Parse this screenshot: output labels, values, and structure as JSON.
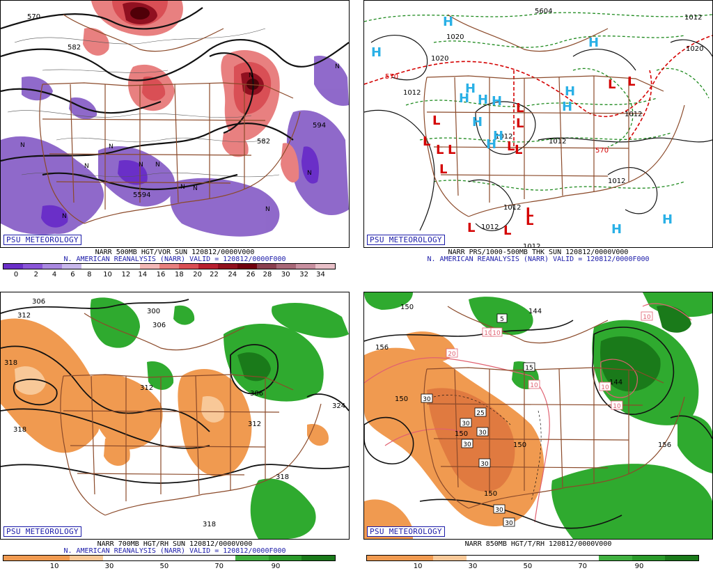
{
  "brand": "PSU METEOROLOGY",
  "colors": {
    "vor_low": "#8a62c8",
    "vor_high": "#d9505a",
    "rh_dry": "#f09a50",
    "rh_wet": "#2faa2f",
    "border": "#8b4a2a",
    "low_mark": "#d40000",
    "high_mark": "#2ab0e6"
  },
  "panels": [
    {
      "caption1": "NARR 500MB HGT/VOR SUN 120812/0000V000",
      "caption2": "N. AMERICAN REANALYSIS (NARR) VALID = 120812/0000F000",
      "colorbar_colors": [
        "#6a2fc8",
        "#8a55d8",
        "#a988e0",
        "#c8b8ec",
        "#ffffff",
        "#ffffff",
        "#ffffff",
        "#f2b8b8",
        "#e88080",
        "#d94f55",
        "#b82030",
        "#901020",
        "#700010",
        "#8a4050",
        "#a86878",
        "#c890a0",
        "#e8c0c8"
      ],
      "ticks": [
        {
          "label": "0",
          "pos": 0.04
        },
        {
          "label": "2",
          "pos": 0.1
        },
        {
          "label": "4",
          "pos": 0.155
        },
        {
          "label": "6",
          "pos": 0.21
        },
        {
          "label": "8",
          "pos": 0.26
        },
        {
          "label": "10",
          "pos": 0.315
        },
        {
          "label": "12",
          "pos": 0.37
        },
        {
          "label": "14",
          "pos": 0.42
        },
        {
          "label": "16",
          "pos": 0.475
        },
        {
          "label": "18",
          "pos": 0.53
        },
        {
          "label": "20",
          "pos": 0.585
        },
        {
          "label": "22",
          "pos": 0.635
        },
        {
          "label": "24",
          "pos": 0.69
        },
        {
          "label": "26",
          "pos": 0.745
        },
        {
          "label": "28",
          "pos": 0.795
        },
        {
          "label": "30",
          "pos": 0.85
        },
        {
          "label": "32",
          "pos": 0.905
        },
        {
          "label": "34",
          "pos": 0.955
        }
      ],
      "contour_labels": [
        "570",
        "582",
        "594",
        "5594",
        "582"
      ],
      "vort_marks": [
        "N",
        "N",
        "N",
        "N",
        "N",
        "N",
        "N",
        "N",
        "N",
        "N",
        "N",
        "N"
      ]
    },
    {
      "caption1": "NARR PRS/1000-500MB THK SUN 120812/0000V000",
      "caption2": "N. AMERICAN REANALYSIS (NARR) VALID = 120812/0000F000",
      "contour_labels": [
        "1020",
        "1012",
        "1012",
        "1012",
        "1012",
        "1012",
        "1012",
        "1020",
        "1012",
        "5604",
        "570",
        "570",
        "1020",
        "1012",
        "1012"
      ],
      "high_marks": [
        "H",
        "H",
        "H",
        "H",
        "H",
        "H",
        "H",
        "H",
        "H",
        "H",
        "H",
        "H",
        "H",
        "H"
      ],
      "low_marks": [
        "L",
        "L",
        "L",
        "L",
        "L",
        "L",
        "L",
        "L",
        "L",
        "L",
        "L",
        "L",
        "L",
        "L",
        "L"
      ]
    },
    {
      "caption1": "NARR 700MB HGT/RH SUN 120812/0000V000",
      "caption2": "N. AMERICAN REANALYSIS (NARR) VALID = 120812/0000F000",
      "colorbar_colors": [
        "#f09a50",
        "#f09a50",
        "#f8c898",
        "#ffffff",
        "#ffffff",
        "#ffffff",
        "#ffffff",
        "#40b040",
        "#2a9a2a",
        "#1a7a1a"
      ],
      "ticks": [
        {
          "label": "10",
          "pos": 0.155
        },
        {
          "label": "30",
          "pos": 0.32
        },
        {
          "label": "50",
          "pos": 0.485
        },
        {
          "label": "70",
          "pos": 0.65
        },
        {
          "label": "90",
          "pos": 0.82
        }
      ],
      "contour_labels": [
        "306",
        "312",
        "300",
        "306",
        "318",
        "312",
        "306",
        "312",
        "324",
        "318",
        "318",
        "318"
      ]
    },
    {
      "caption1": "NARR 850MB HGT/T/RH 120812/0000V000",
      "caption2": "",
      "colorbar_colors": [
        "#f09a50",
        "#f09a50",
        "#f8c898",
        "#ffffff",
        "#ffffff",
        "#ffffff",
        "#ffffff",
        "#40b040",
        "#2a9a2a",
        "#1a7a1a"
      ],
      "ticks": [
        {
          "label": "10",
          "pos": 0.155
        },
        {
          "label": "30",
          "pos": 0.32
        },
        {
          "label": "50",
          "pos": 0.485
        },
        {
          "label": "70",
          "pos": 0.65
        },
        {
          "label": "90",
          "pos": 0.82
        }
      ],
      "contour_labels": [
        "150",
        "144",
        "156",
        "150",
        "150",
        "150",
        "150",
        "156",
        "144"
      ],
      "boxed_labels": [
        "5",
        "10",
        "20",
        "10",
        "15",
        "10",
        "10",
        "10",
        "10",
        "30",
        "25",
        "30",
        "30",
        "30",
        "30",
        "30",
        "30"
      ]
    }
  ]
}
